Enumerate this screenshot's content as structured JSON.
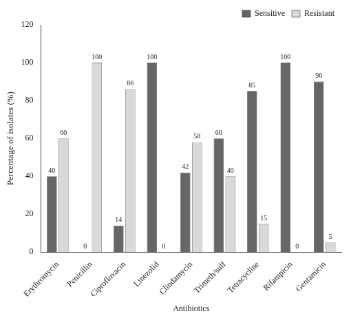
{
  "chart_data": {
    "type": "bar",
    "x_label": "Antibiotics",
    "y_label": "Percentage of isolates (%)",
    "categories": [
      "Erythromycin",
      "Penicillin",
      "Ciprofloxacin",
      "Linezolid",
      "Clindamycin",
      "Trimeth/sulf",
      "Tetracycline",
      "Rifampicin",
      "Gentamicin"
    ],
    "series": [
      {
        "name": "Sensitive",
        "color": "#666666",
        "values": [
          40,
          0,
          14,
          100,
          42,
          60,
          85,
          100,
          90
        ]
      },
      {
        "name": "Resistant",
        "color": "#d9d9d9",
        "values": [
          60,
          100,
          86,
          0,
          58,
          40,
          15,
          0,
          5
        ]
      }
    ],
    "ylim": [
      0,
      120
    ],
    "yticks": [
      0,
      20,
      40,
      60,
      80,
      100,
      120
    ],
    "grid": false,
    "legend": "top-right",
    "data_labels": true
  }
}
